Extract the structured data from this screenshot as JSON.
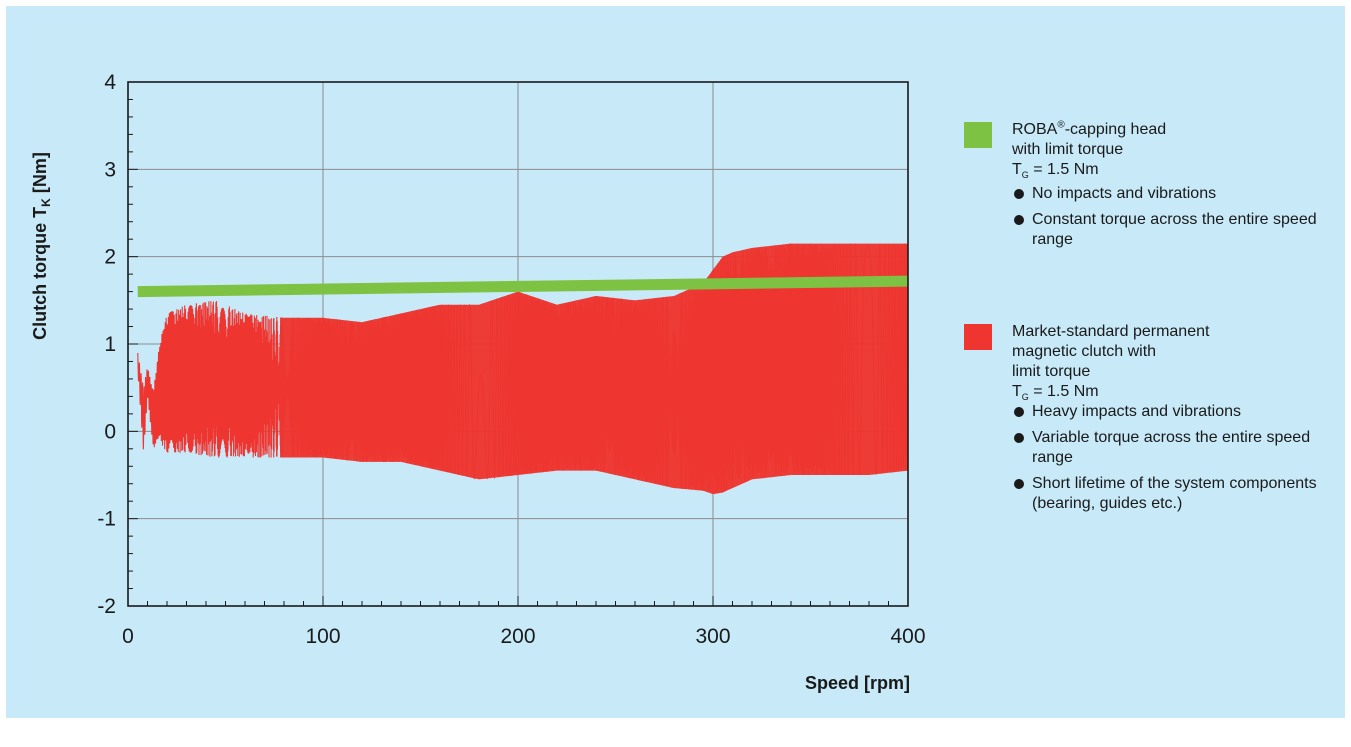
{
  "colors": {
    "panel_background": "#c7e9f8",
    "roba_green": "#7dc242",
    "magnetic_red": "#ee3530",
    "grid": "#8c8c8c",
    "axis": "#1a1a1a"
  },
  "legend": {
    "roba": {
      "title_a": "ROBA",
      "title_reg": "®",
      "title_b": "-capping head",
      "line2": "with limit torque",
      "tg_symbol": "T",
      "tg_sub": "G",
      "tg_value": " = 1.5 Nm",
      "bullets": [
        "No impacts and vibrations",
        "Constant torque across the entire speed range"
      ]
    },
    "magnetic": {
      "line1": "Market-standard permanent",
      "line2": "magnetic clutch with",
      "line3": "limit torque",
      "tg_symbol": "T",
      "tg_sub": "G",
      "tg_value": " = 1.5 Nm",
      "bullets": [
        "Heavy impacts and vibrations",
        "Variable torque across the entire speed range",
        "Short lifetime of the system components (bearing, guides etc.)"
      ]
    }
  },
  "chart_data": {
    "type": "line",
    "xlabel": "Speed [rpm]",
    "ylabel_main": "Clutch torque T",
    "ylabel_sub": "K",
    "ylabel_unit": " [Nm]",
    "xlim": [
      0,
      400
    ],
    "ylim": [
      -2,
      4
    ],
    "x_ticks": [
      0,
      100,
      200,
      300,
      400
    ],
    "y_ticks": [
      -2,
      -1,
      0,
      1,
      2,
      3,
      4
    ],
    "grid": true,
    "series": [
      {
        "name": "ROBA®-capping head with limit torque TG = 1.5 Nm",
        "type": "line",
        "color": "#7dc242",
        "x": [
          5,
          400
        ],
        "y": [
          1.6,
          1.72
        ]
      },
      {
        "name": "Market-standard permanent magnetic clutch with limit torque TG = 1.5 Nm",
        "type": "oscillation_envelope",
        "color": "#ee3530",
        "x": [
          5,
          8,
          10,
          13,
          16,
          20,
          30,
          45,
          60,
          80,
          100,
          120,
          140,
          160,
          180,
          200,
          220,
          240,
          260,
          280,
          295,
          300,
          305,
          310,
          320,
          340,
          360,
          380,
          400
        ],
        "upper": [
          0.9,
          0.5,
          0.75,
          0.45,
          1.0,
          1.35,
          1.45,
          1.5,
          1.35,
          1.3,
          1.3,
          1.25,
          1.35,
          1.45,
          1.45,
          1.6,
          1.45,
          1.55,
          1.5,
          1.55,
          1.7,
          1.85,
          2.0,
          2.05,
          2.1,
          2.15,
          2.15,
          2.15,
          2.15
        ],
        "lower": [
          0.7,
          -0.25,
          0.4,
          -0.2,
          -0.1,
          -0.25,
          -0.25,
          -0.3,
          -0.3,
          -0.3,
          -0.3,
          -0.35,
          -0.35,
          -0.45,
          -0.55,
          -0.5,
          -0.45,
          -0.45,
          -0.55,
          -0.65,
          -0.68,
          -0.72,
          -0.7,
          -0.65,
          -0.55,
          -0.5,
          -0.5,
          -0.5,
          -0.45
        ]
      }
    ]
  }
}
